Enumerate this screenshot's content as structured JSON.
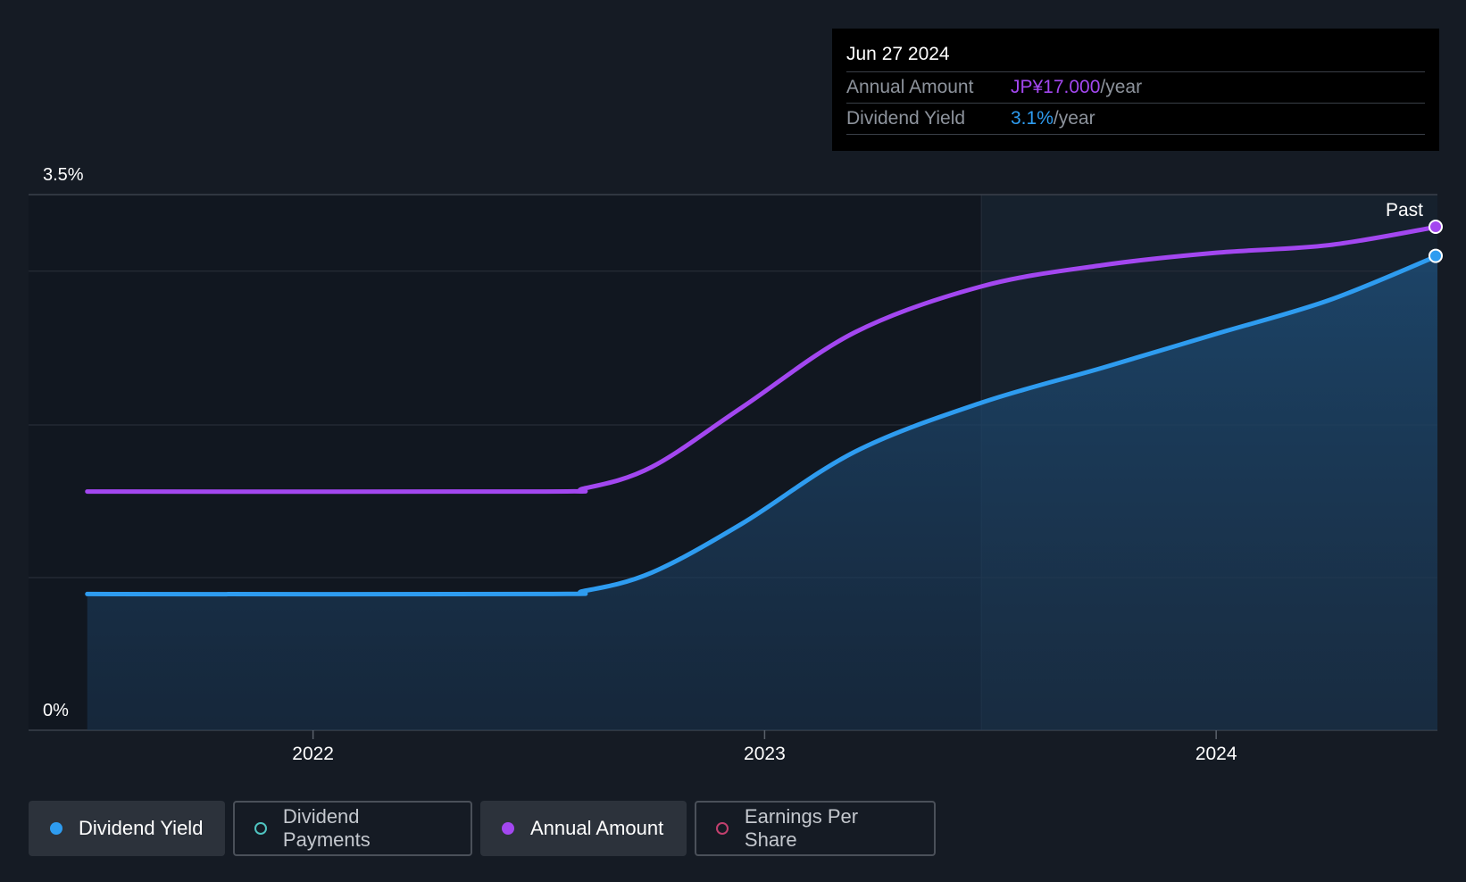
{
  "chart_data": {
    "type": "line",
    "title": "",
    "ylabel": "",
    "xlabel": "",
    "ylim": [
      0,
      3.5
    ],
    "y_ticks": [
      "3.5%",
      "0%"
    ],
    "x_ticks": [
      {
        "label": "2022",
        "x": 2022.0
      },
      {
        "label": "2023",
        "x": 2023.0
      },
      {
        "label": "2024",
        "x": 2024.0
      }
    ],
    "x_range": [
      2021.37,
      2024.49
    ],
    "past_start_x": 2023.48,
    "past_label": "Past",
    "series": [
      {
        "name": "Dividend Yield",
        "color": "#2e9cf0",
        "filled": true,
        "x": [
          2021.5,
          2022.5,
          2022.6,
          2022.75,
          2022.95,
          2023.2,
          2023.48,
          2023.75,
          2024.0,
          2024.25,
          2024.49
        ],
        "values": [
          0.89,
          0.89,
          0.91,
          1.03,
          1.35,
          1.82,
          2.14,
          2.37,
          2.59,
          2.81,
          3.1
        ]
      },
      {
        "name": "Annual Amount",
        "color": "#a347f0",
        "filled": false,
        "x": [
          2021.5,
          2022.5,
          2022.6,
          2022.75,
          2022.95,
          2023.2,
          2023.48,
          2023.75,
          2024.0,
          2024.25,
          2024.49
        ],
        "values": [
          1.56,
          1.56,
          1.58,
          1.72,
          2.11,
          2.6,
          2.9,
          3.04,
          3.12,
          3.17,
          3.29
        ]
      }
    ]
  },
  "tooltip": {
    "date": "Jun 27 2024",
    "rows": [
      {
        "label": "Annual Amount",
        "value": "JP¥17.000",
        "unit": "/year"
      },
      {
        "label": "Dividend Yield",
        "value": "3.1%",
        "unit": "/year"
      }
    ]
  },
  "legend": [
    {
      "label": "Dividend Yield",
      "color": "#2e9cf0",
      "active": true
    },
    {
      "label": "Dividend Payments",
      "color": "#4fc3c0",
      "active": false
    },
    {
      "label": "Annual Amount",
      "color": "#a347f0",
      "active": true
    },
    {
      "label": "Earnings Per Share",
      "color": "#c2406e",
      "active": false
    }
  ]
}
